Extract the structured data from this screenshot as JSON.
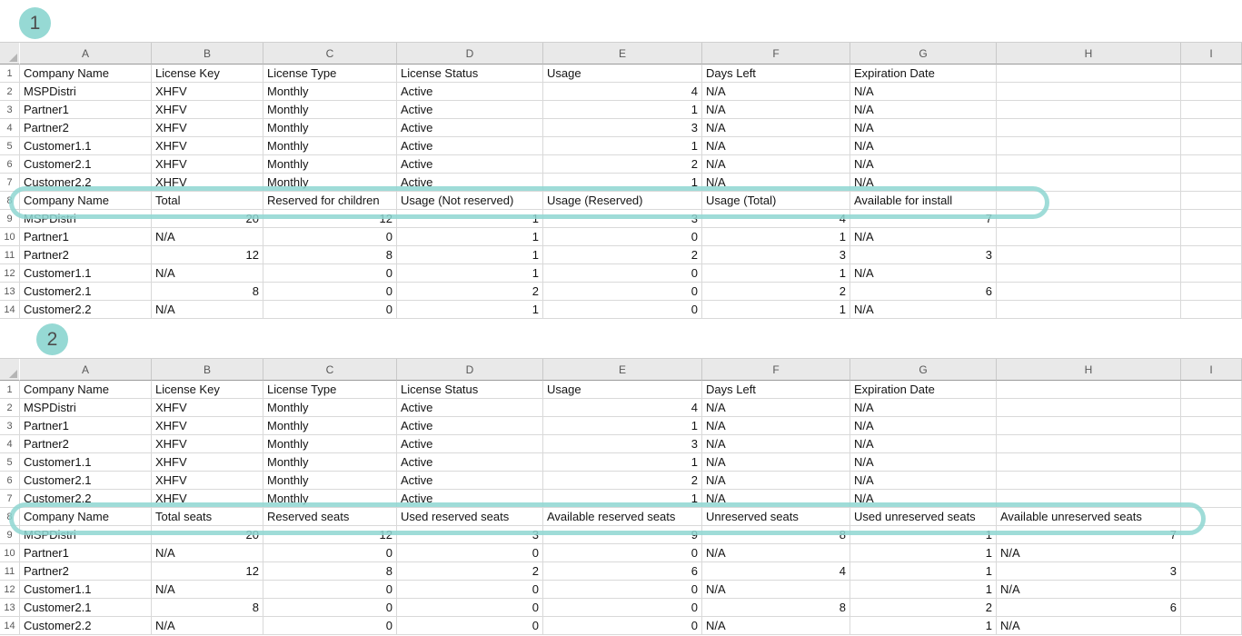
{
  "accent": {
    "teal_badge": "#96d9d4",
    "teal_highlight": "#8ed6d1"
  },
  "columns": [
    "A",
    "B",
    "C",
    "D",
    "E",
    "F",
    "G",
    "H",
    "I"
  ],
  "sheets": [
    {
      "badge": "1",
      "highlighted_row": 8,
      "rows": [
        [
          "Company Name",
          "License Key",
          "License Type",
          "License Status",
          "Usage",
          "Days Left",
          "Expiration Date",
          "",
          ""
        ],
        [
          "MSPDistri",
          "XHFV",
          "Monthly",
          "Active",
          "4",
          "N/A",
          "N/A",
          "",
          ""
        ],
        [
          "Partner1",
          "XHFV",
          "Monthly",
          "Active",
          "1",
          "N/A",
          "N/A",
          "",
          ""
        ],
        [
          "Partner2",
          "XHFV",
          "Monthly",
          "Active",
          "3",
          "N/A",
          "N/A",
          "",
          ""
        ],
        [
          "Customer1.1",
          "XHFV",
          "Monthly",
          "Active",
          "1",
          "N/A",
          "N/A",
          "",
          ""
        ],
        [
          "Customer2.1",
          "XHFV",
          "Monthly",
          "Active",
          "2",
          "N/A",
          "N/A",
          "",
          ""
        ],
        [
          "Customer2.2",
          "XHFV",
          "Monthly",
          "Active",
          "1",
          "N/A",
          "N/A",
          "",
          ""
        ],
        [
          "Company Name",
          "Total",
          "Reserved for children",
          "Usage (Not reserved)",
          "Usage (Reserved)",
          "Usage (Total)",
          "Available for install",
          "",
          ""
        ],
        [
          "MSPDistri",
          "20",
          "12",
          "1",
          "3",
          "4",
          "7",
          "",
          ""
        ],
        [
          "Partner1",
          "N/A",
          "0",
          "1",
          "0",
          "1",
          "N/A",
          "",
          ""
        ],
        [
          "Partner2",
          "12",
          "8",
          "1",
          "2",
          "3",
          "3",
          "",
          ""
        ],
        [
          "Customer1.1",
          "N/A",
          "0",
          "1",
          "0",
          "1",
          "N/A",
          "",
          ""
        ],
        [
          "Customer2.1",
          "8",
          "0",
          "2",
          "0",
          "2",
          "6",
          "",
          ""
        ],
        [
          "Customer2.2",
          "N/A",
          "0",
          "1",
          "0",
          "1",
          "N/A",
          "",
          ""
        ]
      ]
    },
    {
      "badge": "2",
      "highlighted_row": 8,
      "rows": [
        [
          "Company Name",
          "License Key",
          "License Type",
          "License Status",
          "Usage",
          "Days Left",
          "Expiration Date",
          "",
          ""
        ],
        [
          "MSPDistri",
          "XHFV",
          "Monthly",
          "Active",
          "4",
          "N/A",
          "N/A",
          "",
          ""
        ],
        [
          "Partner1",
          "XHFV",
          "Monthly",
          "Active",
          "1",
          "N/A",
          "N/A",
          "",
          ""
        ],
        [
          "Partner2",
          "XHFV",
          "Monthly",
          "Active",
          "3",
          "N/A",
          "N/A",
          "",
          ""
        ],
        [
          "Customer1.1",
          "XHFV",
          "Monthly",
          "Active",
          "1",
          "N/A",
          "N/A",
          "",
          ""
        ],
        [
          "Customer2.1",
          "XHFV",
          "Monthly",
          "Active",
          "2",
          "N/A",
          "N/A",
          "",
          ""
        ],
        [
          "Customer2.2",
          "XHFV",
          "Monthly",
          "Active",
          "1",
          "N/A",
          "N/A",
          "",
          ""
        ],
        [
          "Company Name",
          "Total seats",
          "Reserved seats",
          "Used reserved seats",
          "Available reserved seats",
          "Unreserved seats",
          "Used unreserved seats",
          "Available unreserved seats",
          ""
        ],
        [
          "MSPDistri",
          "20",
          "12",
          "3",
          "9",
          "8",
          "1",
          "7",
          ""
        ],
        [
          "Partner1",
          "N/A",
          "0",
          "0",
          "0",
          "N/A",
          "1",
          "N/A",
          ""
        ],
        [
          "Partner2",
          "12",
          "8",
          "2",
          "6",
          "4",
          "1",
          "3",
          ""
        ],
        [
          "Customer1.1",
          "N/A",
          "0",
          "0",
          "0",
          "N/A",
          "1",
          "N/A",
          ""
        ],
        [
          "Customer2.1",
          "8",
          "0",
          "0",
          "0",
          "8",
          "2",
          "6",
          ""
        ],
        [
          "Customer2.2",
          "N/A",
          "0",
          "0",
          "0",
          "N/A",
          "1",
          "N/A",
          ""
        ]
      ]
    }
  ]
}
